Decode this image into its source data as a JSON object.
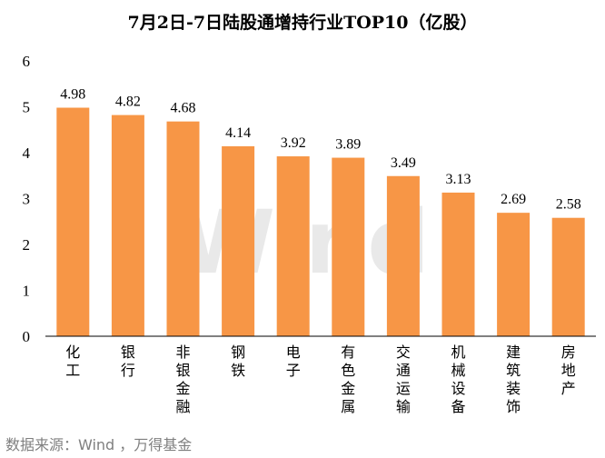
{
  "chart_data": {
    "type": "bar",
    "title": "7月2日-7日陆股通增持行业TOP10（亿股）",
    "categories": [
      "化工",
      "银行",
      "非银金融",
      "钢铁",
      "电子",
      "有色金属",
      "交通运输",
      "机械设备",
      "建筑装饰",
      "房地产"
    ],
    "values": [
      4.98,
      4.82,
      4.68,
      4.14,
      3.92,
      3.89,
      3.49,
      3.13,
      2.69,
      2.58
    ],
    "value_labels": [
      "4.98",
      "4.82",
      "4.68",
      "4.14",
      "3.92",
      "3.89",
      "3.49",
      "3.13",
      "2.69",
      "2.58"
    ],
    "yticks": [
      "0",
      "1",
      "2",
      "3",
      "4",
      "5",
      "6"
    ],
    "ylim": [
      0,
      6
    ],
    "xlabel": "",
    "ylabel": "",
    "grid": false,
    "legend": "none",
    "bar_color": "#F79646",
    "watermark": "Wind"
  },
  "source": "数据来源：Wind  ，万得基金"
}
